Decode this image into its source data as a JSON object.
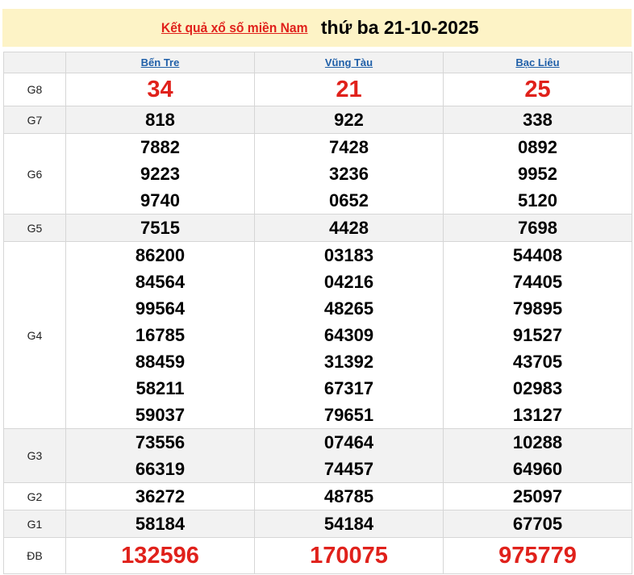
{
  "header": {
    "link_text": "Kết quả xổ số miền Nam",
    "date_text": "thứ ba 21-10-2025"
  },
  "provinces": [
    "Bến Tre",
    "Vũng Tàu",
    "Bạc Liêu"
  ],
  "colors": {
    "accent_red": "#e0211b",
    "link_blue": "#1f5fa8",
    "banner_bg": "#fdf3c6"
  },
  "prizes": [
    {
      "label": "G8",
      "cols": [
        [
          "34"
        ],
        [
          "21"
        ],
        [
          "25"
        ]
      ]
    },
    {
      "label": "G7",
      "cols": [
        [
          "818"
        ],
        [
          "922"
        ],
        [
          "338"
        ]
      ]
    },
    {
      "label": "G6",
      "cols": [
        [
          "7882",
          "9223",
          "9740"
        ],
        [
          "7428",
          "3236",
          "0652"
        ],
        [
          "0892",
          "9952",
          "5120"
        ]
      ]
    },
    {
      "label": "G5",
      "cols": [
        [
          "7515"
        ],
        [
          "4428"
        ],
        [
          "7698"
        ]
      ]
    },
    {
      "label": "G4",
      "cols": [
        [
          "86200",
          "84564",
          "99564",
          "16785",
          "88459",
          "58211",
          "59037"
        ],
        [
          "03183",
          "04216",
          "48265",
          "64309",
          "31392",
          "67317",
          "79651"
        ],
        [
          "54408",
          "74405",
          "79895",
          "91527",
          "43705",
          "02983",
          "13127"
        ]
      ]
    },
    {
      "label": "G3",
      "cols": [
        [
          "73556",
          "66319"
        ],
        [
          "07464",
          "74457"
        ],
        [
          "10288",
          "64960"
        ]
      ]
    },
    {
      "label": "G2",
      "cols": [
        [
          "36272"
        ],
        [
          "48785"
        ],
        [
          "25097"
        ]
      ]
    },
    {
      "label": "G1",
      "cols": [
        [
          "58184"
        ],
        [
          "54184"
        ],
        [
          "67705"
        ]
      ]
    },
    {
      "label": "ĐB",
      "cols": [
        [
          "132596"
        ],
        [
          "170075"
        ],
        [
          "975779"
        ]
      ]
    }
  ]
}
